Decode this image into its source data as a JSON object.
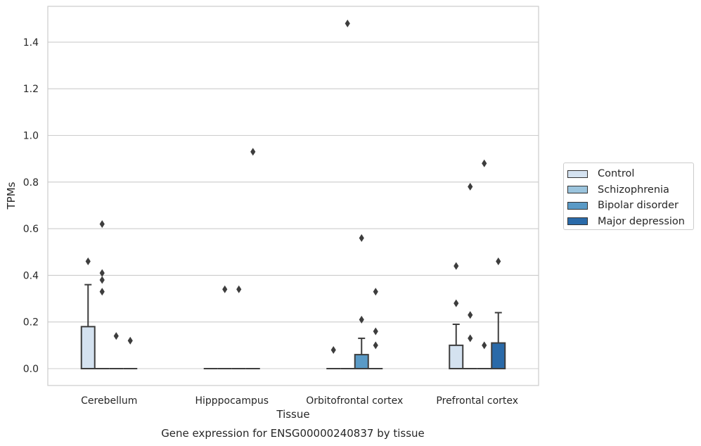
{
  "caption": "Gene expression for ENSG00000240837 by tissue",
  "chart_data": {
    "type": "box",
    "xlabel": "Tissue",
    "ylabel": "TPMs",
    "ylim": [
      -0.07,
      1.56
    ],
    "yticks": [
      0.0,
      0.2,
      0.4,
      0.6,
      0.8,
      1.0,
      1.2,
      1.4
    ],
    "grid": "horizontal",
    "legend_position": "right",
    "categories": [
      "Cerebellum",
      "Hipppocampus",
      "Orbitofrontal cortex",
      "Prefrontal cortex"
    ],
    "series": [
      {
        "name": "Control",
        "color": "#d4e2f0",
        "boxes": [
          {
            "q1": 0,
            "median": 0,
            "q3": 0.18,
            "whisker_low": 0,
            "whisker_high": 0.36,
            "outliers": [
              0.46
            ]
          },
          {
            "q1": 0,
            "median": 0,
            "q3": 0,
            "whisker_low": 0,
            "whisker_high": 0,
            "outliers": []
          },
          {
            "q1": 0,
            "median": 0,
            "q3": 0,
            "whisker_low": 0,
            "whisker_high": 0,
            "outliers": [
              0.08
            ]
          },
          {
            "q1": 0,
            "median": 0,
            "q3": 0.1,
            "whisker_low": 0,
            "whisker_high": 0.19,
            "outliers": [
              0.28,
              0.44
            ]
          }
        ]
      },
      {
        "name": "Schizophrenia",
        "color": "#9bc4dd",
        "boxes": [
          {
            "q1": 0,
            "median": 0,
            "q3": 0,
            "whisker_low": 0,
            "whisker_high": 0,
            "outliers": [
              0.33,
              0.38,
              0.41,
              0.62
            ]
          },
          {
            "q1": 0,
            "median": 0,
            "q3": 0,
            "whisker_low": 0,
            "whisker_high": 0,
            "outliers": [
              0.34
            ]
          },
          {
            "q1": 0,
            "median": 0,
            "q3": 0,
            "whisker_low": 0,
            "whisker_high": 0,
            "outliers": [
              1.48
            ]
          },
          {
            "q1": 0,
            "median": 0,
            "q3": 0,
            "whisker_low": 0,
            "whisker_high": 0,
            "outliers": [
              0.13,
              0.23,
              0.78
            ]
          }
        ]
      },
      {
        "name": "Bipolar disorder",
        "color": "#5a9ac6",
        "boxes": [
          {
            "q1": 0,
            "median": 0,
            "q3": 0,
            "whisker_low": 0,
            "whisker_high": 0,
            "outliers": [
              0.14
            ]
          },
          {
            "q1": 0,
            "median": 0,
            "q3": 0,
            "whisker_low": 0,
            "whisker_high": 0,
            "outliers": [
              0.34
            ]
          },
          {
            "q1": 0,
            "median": 0,
            "q3": 0.06,
            "whisker_low": 0,
            "whisker_high": 0.13,
            "outliers": [
              0.21,
              0.56
            ]
          },
          {
            "q1": 0,
            "median": 0,
            "q3": 0,
            "whisker_low": 0,
            "whisker_high": 0,
            "outliers": [
              0.1,
              0.88
            ]
          }
        ]
      },
      {
        "name": "Major depression",
        "color": "#2a6aa9",
        "boxes": [
          {
            "q1": 0,
            "median": 0,
            "q3": 0,
            "whisker_low": 0,
            "whisker_high": 0,
            "outliers": [
              0.12
            ]
          },
          {
            "q1": 0,
            "median": 0,
            "q3": 0,
            "whisker_low": 0,
            "whisker_high": 0,
            "outliers": [
              0.93
            ]
          },
          {
            "q1": 0,
            "median": 0,
            "q3": 0,
            "whisker_low": 0,
            "whisker_high": 0,
            "outliers": [
              0.1,
              0.16,
              0.33
            ]
          },
          {
            "q1": 0,
            "median": 0,
            "q3": 0.11,
            "whisker_low": 0,
            "whisker_high": 0.24,
            "outliers": [
              0.46
            ]
          }
        ]
      }
    ]
  }
}
